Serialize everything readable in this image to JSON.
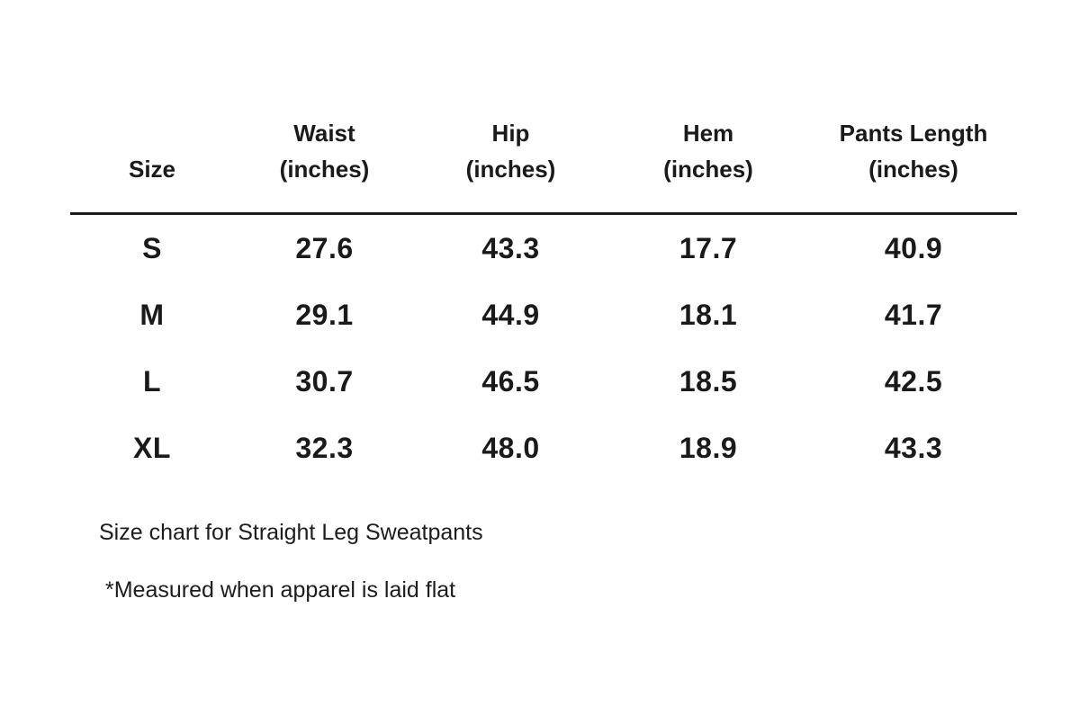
{
  "table": {
    "header": {
      "size": "Size",
      "waist_label": "Waist",
      "waist_sub": "(inches)",
      "hip_label": "Hip",
      "hip_sub": "(inches)",
      "hem_label": "Hem",
      "hem_sub": "(inches)",
      "pants_label": "Pants Length",
      "pants_sub": "(inches)"
    },
    "rows": [
      {
        "size": "S",
        "waist": "27.6",
        "hip": "43.3",
        "hem": "17.7",
        "pants": "40.9"
      },
      {
        "size": "M",
        "waist": "29.1",
        "hip": "44.9",
        "hem": "18.1",
        "pants": "41.7"
      },
      {
        "size": "L",
        "waist": "30.7",
        "hip": "46.5",
        "hem": "18.5",
        "pants": "42.5"
      },
      {
        "size": "XL",
        "waist": "32.3",
        "hip": "48.0",
        "hem": "18.9",
        "pants": "43.3"
      }
    ]
  },
  "caption": "Size chart for Straight Leg Sweatpants",
  "footnote": "*Measured when apparel is laid flat",
  "colors": {
    "background": "#ffffff",
    "text": "#1a1a1a",
    "divider": "#1c1c1c"
  },
  "chart_data": {
    "type": "table",
    "title": "Size chart for Straight Leg Sweatpants",
    "columns": [
      "Size",
      "Waist (inches)",
      "Hip (inches)",
      "Hem (inches)",
      "Pants Length (inches)"
    ],
    "rows": [
      [
        "S",
        27.6,
        43.3,
        17.7,
        40.9
      ],
      [
        "M",
        29.1,
        44.9,
        18.1,
        41.7
      ],
      [
        "L",
        30.7,
        46.5,
        18.5,
        42.5
      ],
      [
        "XL",
        32.3,
        48.0,
        18.9,
        43.3
      ]
    ],
    "footnote": "*Measured when apparel is laid flat",
    "layout": {
      "grid": "off",
      "header_divider": true,
      "column_alignment": "center"
    }
  }
}
